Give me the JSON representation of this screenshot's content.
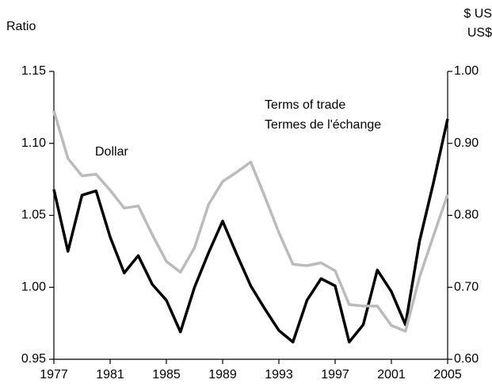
{
  "chart_data": {
    "type": "line",
    "y_label": "Ratio",
    "y2_label": [
      "$ US",
      "US$"
    ],
    "x": [
      1977,
      1978,
      1979,
      1980,
      1981,
      1982,
      1983,
      1984,
      1985,
      1986,
      1987,
      1988,
      1989,
      1990,
      1991,
      1992,
      1993,
      1994,
      1995,
      1996,
      1997,
      1998,
      1999,
      2000,
      2001,
      2002,
      2003,
      2004,
      2005
    ],
    "series": [
      {
        "name": "Terms of trade",
        "color": "#000000",
        "axis": "y",
        "values": [
          1.068,
          1.025,
          1.064,
          1.067,
          1.035,
          1.01,
          1.022,
          1.002,
          0.991,
          0.969,
          1.0,
          1.024,
          1.046,
          1.023,
          1.001,
          0.985,
          0.97,
          0.962,
          0.991,
          1.006,
          1.001,
          0.962,
          0.974,
          1.012,
          0.997,
          0.974,
          1.032,
          1.073,
          1.117
        ]
      },
      {
        "name": "Dollar",
        "color": "#bbbbbb",
        "axis": "y2",
        "values": [
          0.945,
          0.879,
          0.855,
          0.857,
          0.835,
          0.81,
          0.813,
          0.773,
          0.736,
          0.721,
          0.755,
          0.815,
          0.847,
          0.86,
          0.874,
          0.826,
          0.776,
          0.732,
          0.73,
          0.734,
          0.723,
          0.676,
          0.674,
          0.674,
          0.647,
          0.639,
          0.714,
          0.772,
          0.829
        ]
      }
    ],
    "annotations": [
      "Termes de l'échange"
    ],
    "xlim": [
      1977,
      2005
    ],
    "xticks": [
      1977,
      1981,
      1985,
      1989,
      1993,
      1997,
      2001,
      2005
    ],
    "ylim": [
      0.95,
      1.15
    ],
    "yticks": [
      0.95,
      {
        "value": 1.0,
        "label": "1.00"
      },
      1.05,
      {
        "value": 1.1,
        "label": "1.10"
      },
      1.15
    ],
    "y2lim": [
      0.6,
      1.0
    ],
    "y2ticks": [
      {
        "value": 0.6,
        "label": "0.60"
      },
      {
        "value": 0.7,
        "label": "0.70"
      },
      {
        "value": 0.8,
        "label": "0.80"
      },
      {
        "value": 0.9,
        "label": "0.90"
      },
      {
        "value": 1.0,
        "label": "1.00"
      }
    ]
  }
}
